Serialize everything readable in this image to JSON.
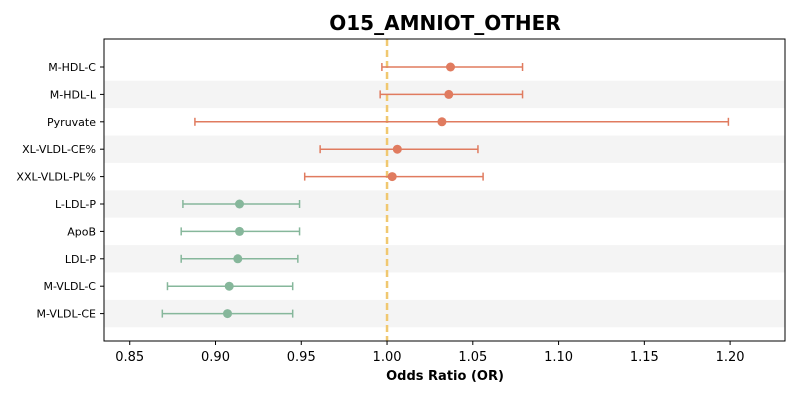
{
  "chart_data": {
    "type": "forest",
    "title": "O15_AMNIOT_OTHER",
    "xlabel": "Odds Ratio (OR)",
    "ylabel": "",
    "xlim": [
      0.835,
      1.232
    ],
    "xticks": [
      0.85,
      0.9,
      0.95,
      1.0,
      1.05,
      1.1,
      1.15,
      1.2
    ],
    "xtick_labels": [
      "0.85",
      "0.90",
      "0.95",
      "1.00",
      "1.05",
      "1.10",
      "1.15",
      "1.20"
    ],
    "reference_line": 1.0,
    "rows": [
      {
        "label": "M-HDL-C",
        "or": 1.037,
        "lower": 0.997,
        "upper": 1.079,
        "direction": "positive"
      },
      {
        "label": "M-HDL-L",
        "or": 1.036,
        "lower": 0.996,
        "upper": 1.079,
        "direction": "positive"
      },
      {
        "label": "Pyruvate",
        "or": 1.032,
        "lower": 0.888,
        "upper": 1.199,
        "direction": "positive"
      },
      {
        "label": "XL-VLDL-CE%",
        "or": 1.006,
        "lower": 0.961,
        "upper": 1.053,
        "direction": "positive"
      },
      {
        "label": "XXL-VLDL-PL%",
        "or": 1.003,
        "lower": 0.952,
        "upper": 1.056,
        "direction": "positive"
      },
      {
        "label": "L-LDL-P",
        "or": 0.914,
        "lower": 0.881,
        "upper": 0.949,
        "direction": "negative"
      },
      {
        "label": "ApoB",
        "or": 0.914,
        "lower": 0.88,
        "upper": 0.949,
        "direction": "negative"
      },
      {
        "label": "LDL-P",
        "or": 0.913,
        "lower": 0.88,
        "upper": 0.948,
        "direction": "negative"
      },
      {
        "label": "M-VLDL-C",
        "or": 0.908,
        "lower": 0.872,
        "upper": 0.945,
        "direction": "negative"
      },
      {
        "label": "M-VLDL-CE",
        "or": 0.907,
        "lower": 0.869,
        "upper": 0.945,
        "direction": "negative"
      }
    ],
    "colors": {
      "positive": "#e07b5f",
      "negative": "#86b79b",
      "reference": "#f0c870",
      "stripe": "#f4f4f4"
    }
  }
}
